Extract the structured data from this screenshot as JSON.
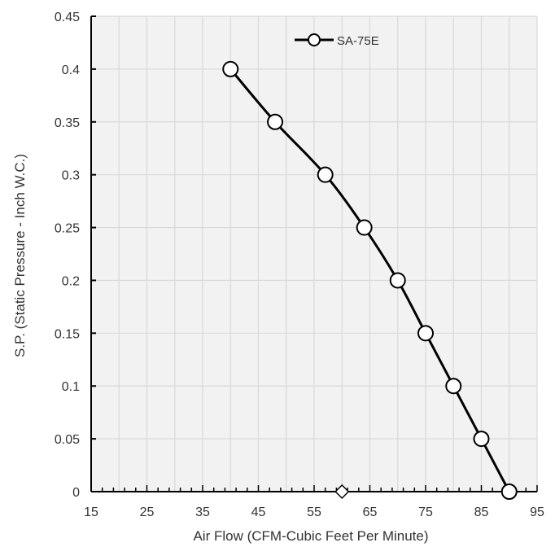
{
  "chart_data": {
    "type": "line",
    "xlabel": "Air Flow (CFM-Cubic Feet Per Minute)",
    "ylabel": "S.P. (Static Pressure - Inch W.C.)",
    "xlim": [
      15,
      95
    ],
    "ylim": [
      0,
      0.45
    ],
    "x_ticks": [
      15,
      25,
      35,
      45,
      55,
      65,
      75,
      85,
      95
    ],
    "y_ticks": [
      0,
      0.05,
      0.1,
      0.15,
      0.2,
      0.25,
      0.3,
      0.35,
      0.4,
      0.45
    ],
    "x_tick_labels": [
      "15",
      "25",
      "35",
      "45",
      "55",
      "65",
      "75",
      "85",
      "95"
    ],
    "y_tick_labels": [
      "0",
      "0.05",
      "0.1",
      "0.15",
      "0.2",
      "0.25",
      "0.3",
      "0.35",
      "0.4",
      "0.45"
    ],
    "grid": true,
    "legend_position": "top-right",
    "series": [
      {
        "name": "SA-75E",
        "color": "#000000",
        "marker": "circle",
        "x": [
          40,
          48,
          57,
          64,
          70,
          75,
          80,
          85,
          90
        ],
        "y": [
          0.4,
          0.35,
          0.3,
          0.25,
          0.2,
          0.15,
          0.1,
          0.05,
          0
        ]
      }
    ],
    "annotations": [
      {
        "type": "diamond-marker",
        "x": 60,
        "y": 0
      }
    ],
    "colors": {
      "plot_background": "#f2f2f2",
      "grid": "#d9d9d9",
      "axis": "#000000",
      "text": "#333333"
    }
  }
}
